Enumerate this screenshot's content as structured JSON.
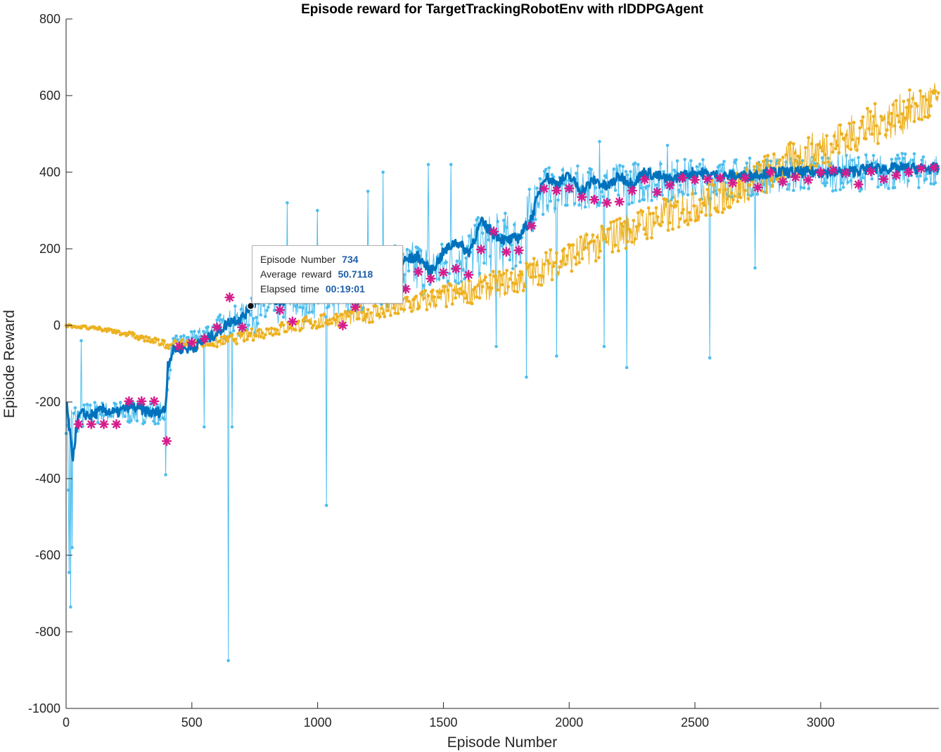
{
  "chart_data": {
    "type": "line",
    "title": "Episode reward for TargetTrackingRobotEnv with rlDDPGAgent",
    "xlabel": "Episode Number",
    "ylabel": "Episode Reward",
    "xlim": [
      0,
      3470
    ],
    "ylim": [
      -1000,
      800
    ],
    "xticks": [
      0,
      500,
      1000,
      1500,
      2000,
      2500,
      3000
    ],
    "yticks": [
      -1000,
      -800,
      -600,
      -400,
      -200,
      0,
      200,
      400,
      600,
      800
    ],
    "grid": false,
    "colors": {
      "episode_reward": "#4DBEEE",
      "average_reward": "#0072BD",
      "episode_q0": "#EDB120",
      "evaluation": "#D61C8C"
    },
    "series": [
      {
        "key": "episode_reward",
        "style": "line-dots",
        "envelope": {
          "x": [
            0,
            30,
            60,
            100,
            200,
            300,
            395,
            420,
            500,
            600,
            700,
            800,
            900,
            1000,
            1100,
            1200,
            1300,
            1400,
            1500,
            1600,
            1700,
            1800,
            1880,
            2000,
            2200,
            2400,
            2600,
            2800,
            3000,
            3200,
            3470
          ],
          "lo": [
            -300,
            -330,
            -290,
            -270,
            -270,
            -270,
            -270,
            -90,
            -75,
            -55,
            -50,
            -30,
            -20,
            -10,
            -15,
            0,
            20,
            40,
            50,
            70,
            100,
            110,
            260,
            270,
            290,
            300,
            310,
            320,
            330,
            330,
            340
          ],
          "hi": [
            -180,
            -170,
            -190,
            -185,
            -185,
            -185,
            -185,
            -20,
            -5,
            40,
            80,
            110,
            140,
            170,
            190,
            230,
            240,
            260,
            250,
            310,
            330,
            330,
            440,
            440,
            450,
            460,
            460,
            460,
            470,
            470,
            470
          ]
        },
        "spikes": [
          {
            "x": 12,
            "y": -645
          },
          {
            "x": 18,
            "y": -735
          },
          {
            "x": 25,
            "y": -580
          },
          {
            "x": 8,
            "y": -430
          },
          {
            "x": 60,
            "y": -40
          },
          {
            "x": 397,
            "y": -390
          },
          {
            "x": 550,
            "y": -265
          },
          {
            "x": 645,
            "y": -875
          },
          {
            "x": 660,
            "y": -265
          },
          {
            "x": 880,
            "y": 320
          },
          {
            "x": 1035,
            "y": -470
          },
          {
            "x": 1000,
            "y": 300
          },
          {
            "x": 1200,
            "y": 350
          },
          {
            "x": 1260,
            "y": 400
          },
          {
            "x": 1440,
            "y": 420
          },
          {
            "x": 1530,
            "y": 420
          },
          {
            "x": 1710,
            "y": -55
          },
          {
            "x": 1830,
            "y": -135
          },
          {
            "x": 1950,
            "y": -80
          },
          {
            "x": 2140,
            "y": -55
          },
          {
            "x": 2230,
            "y": -110
          },
          {
            "x": 2560,
            "y": -85
          },
          {
            "x": 2740,
            "y": 150
          },
          {
            "x": 2120,
            "y": 480
          },
          {
            "x": 2390,
            "y": 470
          }
        ]
      },
      {
        "key": "average_reward",
        "style": "line",
        "points": [
          [
            0,
            -200
          ],
          [
            15,
            -280
          ],
          [
            25,
            -350
          ],
          [
            35,
            -300
          ],
          [
            45,
            -250
          ],
          [
            60,
            -230
          ],
          [
            100,
            -235
          ],
          [
            150,
            -220
          ],
          [
            200,
            -230
          ],
          [
            250,
            -210
          ],
          [
            300,
            -220
          ],
          [
            350,
            -230
          ],
          [
            395,
            -220
          ],
          [
            405,
            -100
          ],
          [
            430,
            -60
          ],
          [
            500,
            -60
          ],
          [
            550,
            -40
          ],
          [
            600,
            -20
          ],
          [
            650,
            10
          ],
          [
            700,
            20
          ],
          [
            734,
            50.7118
          ],
          [
            780,
            80
          ],
          [
            850,
            60
          ],
          [
            900,
            80
          ],
          [
            950,
            70
          ],
          [
            1000,
            110
          ],
          [
            1050,
            110
          ],
          [
            1100,
            100
          ],
          [
            1150,
            130
          ],
          [
            1200,
            130
          ],
          [
            1250,
            110
          ],
          [
            1300,
            150
          ],
          [
            1350,
            170
          ],
          [
            1400,
            180
          ],
          [
            1450,
            140
          ],
          [
            1500,
            190
          ],
          [
            1550,
            220
          ],
          [
            1600,
            190
          ],
          [
            1650,
            270
          ],
          [
            1700,
            240
          ],
          [
            1750,
            220
          ],
          [
            1800,
            230
          ],
          [
            1850,
            280
          ],
          [
            1900,
            390
          ],
          [
            1950,
            370
          ],
          [
            2000,
            390
          ],
          [
            2050,
            350
          ],
          [
            2100,
            380
          ],
          [
            2150,
            360
          ],
          [
            2200,
            390
          ],
          [
            2250,
            370
          ],
          [
            2300,
            400
          ],
          [
            2350,
            390
          ],
          [
            2400,
            380
          ],
          [
            2500,
            400
          ],
          [
            2600,
            390
          ],
          [
            2700,
            390
          ],
          [
            2800,
            400
          ],
          [
            2900,
            400
          ],
          [
            3000,
            400
          ],
          [
            3100,
            400
          ],
          [
            3200,
            410
          ],
          [
            3300,
            410
          ],
          [
            3400,
            410
          ],
          [
            3470,
            410
          ]
        ]
      },
      {
        "key": "episode_q0",
        "style": "line-dots",
        "trend": [
          [
            0,
            0
          ],
          [
            200,
            -15
          ],
          [
            400,
            -50
          ],
          [
            600,
            -45
          ],
          [
            800,
            -15
          ],
          [
            1000,
            10
          ],
          [
            1200,
            30
          ],
          [
            1400,
            60
          ],
          [
            1600,
            90
          ],
          [
            1800,
            120
          ],
          [
            2000,
            180
          ],
          [
            2200,
            240
          ],
          [
            2400,
            290
          ],
          [
            2600,
            340
          ],
          [
            2800,
            400
          ],
          [
            3000,
            460
          ],
          [
            3200,
            520
          ],
          [
            3470,
            590
          ]
        ],
        "spread": [
          [
            0,
            3
          ],
          [
            400,
            10
          ],
          [
            1000,
            20
          ],
          [
            2000,
            45
          ],
          [
            3000,
            55
          ],
          [
            3470,
            55
          ]
        ]
      },
      {
        "key": "evaluation",
        "style": "markers",
        "marker": "asterisk",
        "points": [
          [
            50,
            -258
          ],
          [
            100,
            -258
          ],
          [
            150,
            -258
          ],
          [
            200,
            -258
          ],
          [
            250,
            -198
          ],
          [
            300,
            -198
          ],
          [
            350,
            -198
          ],
          [
            400,
            -302
          ],
          [
            450,
            -55
          ],
          [
            500,
            -45
          ],
          [
            550,
            -35
          ],
          [
            600,
            -5
          ],
          [
            650,
            73
          ],
          [
            700,
            -5
          ],
          [
            850,
            40
          ],
          [
            900,
            10
          ],
          [
            1100,
            0
          ],
          [
            1150,
            48
          ],
          [
            1350,
            95
          ],
          [
            1400,
            140
          ],
          [
            1450,
            122
          ],
          [
            1500,
            138
          ],
          [
            1550,
            148
          ],
          [
            1600,
            132
          ],
          [
            1650,
            198
          ],
          [
            1700,
            245
          ],
          [
            1750,
            192
          ],
          [
            1800,
            196
          ],
          [
            1850,
            260
          ],
          [
            1900,
            357
          ],
          [
            1950,
            352
          ],
          [
            2000,
            358
          ],
          [
            2050,
            335
          ],
          [
            2100,
            328
          ],
          [
            2150,
            320
          ],
          [
            2200,
            323
          ],
          [
            2250,
            352
          ],
          [
            2300,
            381
          ],
          [
            2350,
            348
          ],
          [
            2400,
            366
          ],
          [
            2450,
            385
          ],
          [
            2500,
            380
          ],
          [
            2550,
            382
          ],
          [
            2600,
            385
          ],
          [
            2650,
            372
          ],
          [
            2700,
            385
          ],
          [
            2750,
            360
          ],
          [
            2800,
            400
          ],
          [
            2850,
            375
          ],
          [
            2900,
            387
          ],
          [
            2950,
            380
          ],
          [
            3000,
            400
          ],
          [
            3050,
            405
          ],
          [
            3100,
            398
          ],
          [
            3150,
            368
          ],
          [
            3200,
            402
          ],
          [
            3250,
            382
          ],
          [
            3300,
            392
          ],
          [
            3350,
            400
          ],
          [
            3400,
            410
          ],
          [
            3450,
            412
          ]
        ]
      }
    ],
    "tooltip": {
      "x": 734,
      "y": 50.7118,
      "rows": [
        {
          "label": "Episode  Number",
          "value": "734"
        },
        {
          "label": "Average  reward",
          "value": "50.7118"
        },
        {
          "label": "Elapsed  time",
          "value": "00:19:01"
        }
      ]
    }
  }
}
